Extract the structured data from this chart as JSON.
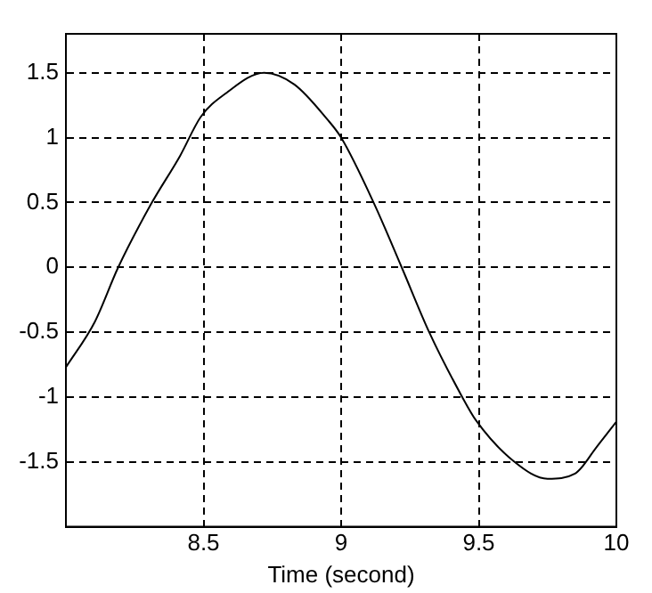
{
  "chart_data": {
    "type": "line",
    "xlabel": "Time (second)",
    "series": [
      {
        "color": "#000000",
        "x": [
          8.0,
          8.105,
          8.19,
          8.31,
          8.415,
          8.49,
          8.58,
          8.72,
          8.83,
          8.95,
          9.0,
          9.12,
          9.22,
          9.32,
          9.44,
          9.49,
          9.63,
          9.75,
          9.85,
          9.93,
          10.0
        ],
        "values": [
          -0.77,
          -0.42,
          0.0,
          0.49,
          0.86,
          1.16,
          1.34,
          1.5,
          1.41,
          1.14,
          1.0,
          0.49,
          0.0,
          -0.5,
          -1.0,
          -1.18,
          -1.5,
          -1.63,
          -1.59,
          -1.38,
          -1.19
        ]
      }
    ],
    "xlim": [
      8,
      10
    ],
    "ylim": [
      -2,
      1.8
    ],
    "xticks": [
      8.5,
      9,
      9.5,
      10
    ],
    "yticks": [
      -1.5,
      -1,
      -0.5,
      0,
      0.5,
      1,
      1.5
    ],
    "grid": true,
    "legend": false,
    "marker": "none",
    "line_style": "solid"
  }
}
